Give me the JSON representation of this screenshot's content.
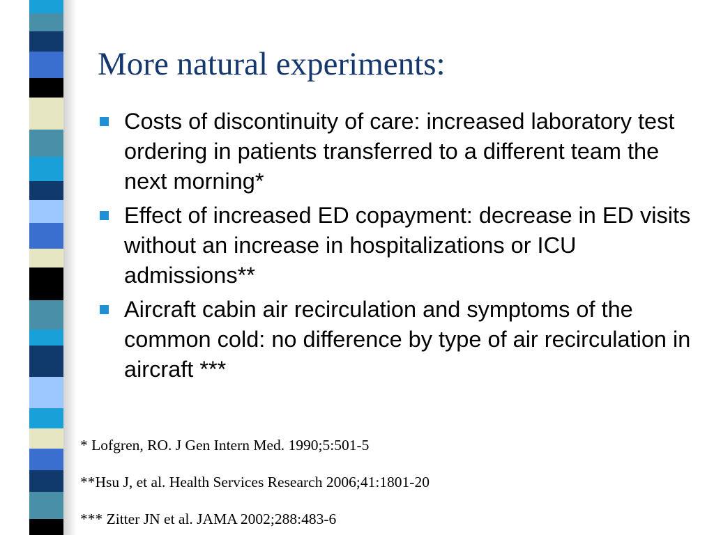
{
  "slide": {
    "title": "More natural experiments:",
    "bullets": [
      "Costs of discontinuity of care: increased laboratory test ordering in patients transferred to a different team the next morning*",
      "Effect of increased ED copayment: decrease in ED visits without an increase in hospitalizations or ICU admissions**",
      "Aircraft cabin air recirculation and symptoms of the common cold: no difference by type of air recirculation in aircraft ***"
    ],
    "references": [
      "* Lofgren, RO. J Gen Intern Med. 1990;5:501-5",
      "**Hsu J, et al. Health Services Research 2006;41:1801-20",
      "*** Zitter JN et al. JAMA 2002;288:483-6"
    ]
  },
  "colors": {
    "title": "#14376e",
    "bullet_marker": "#1f8fd6",
    "stripe_palette": [
      "#4a8fa8",
      "#0f3a6b",
      "#3a6fd0",
      "#e6e7c2",
      "#000000",
      "#1aa0d8",
      "#9cc8ff"
    ]
  }
}
